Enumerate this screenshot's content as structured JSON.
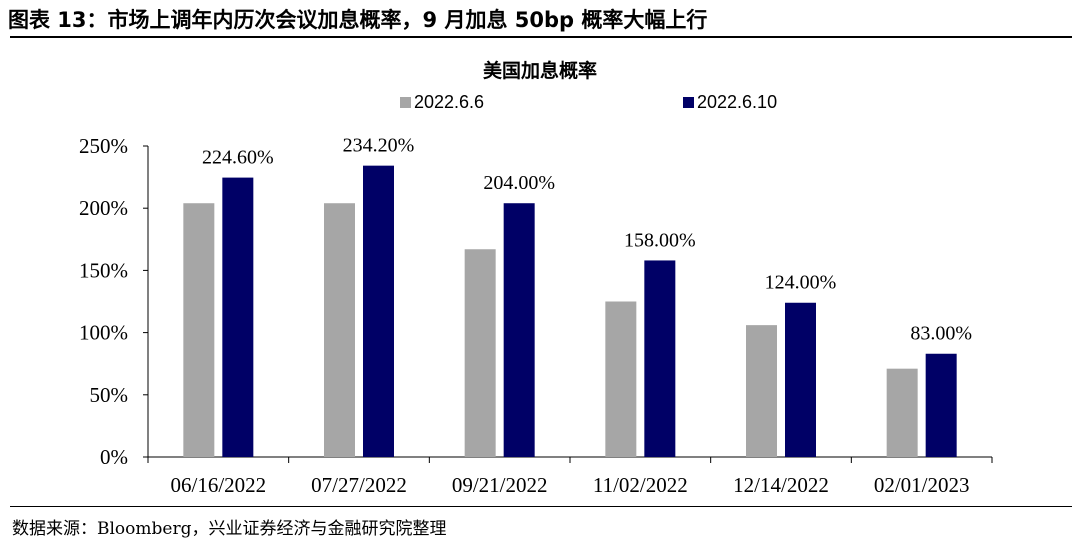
{
  "figure": {
    "header": "图表 13：市场上调年内历次会议加息概率，9 月加息 50bp 概率大幅上行",
    "source": "数据来源：Bloomberg，兴业证券经济与金融研究院整理"
  },
  "chart_data": {
    "type": "bar",
    "title": "美国加息概率",
    "categories": [
      "06/16/2022",
      "07/27/2022",
      "09/21/2022",
      "11/02/2022",
      "12/14/2022",
      "02/01/2023"
    ],
    "series": [
      {
        "name": "2022.6.6",
        "color": "#a6a6a6",
        "values": [
          204,
          204,
          167,
          125,
          106,
          71
        ]
      },
      {
        "name": "2022.6.10",
        "color": "#000066",
        "values": [
          224.6,
          234.2,
          204,
          158,
          124,
          83
        ]
      }
    ],
    "data_labels": [
      "224.60%",
      "234.20%",
      "204.00%",
      "158.00%",
      "124.00%",
      "83.00%"
    ],
    "yticks": [
      "0%",
      "50%",
      "100%",
      "150%",
      "200%",
      "250%"
    ],
    "ylim": [
      0,
      250
    ],
    "grid": false,
    "legend_position": "top"
  }
}
